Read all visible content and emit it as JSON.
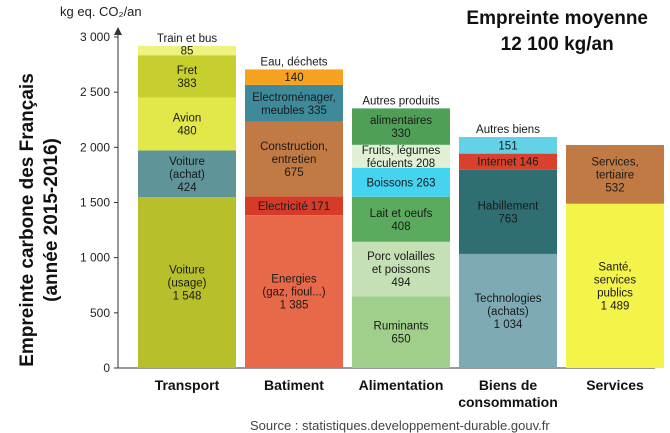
{
  "chart_data": {
    "type": "bar",
    "stacked": true,
    "unit_label": "kg eq. CO₂/an",
    "ylabel_lines": [
      "Empreinte carbone des Français",
      "(année 2015-2016)"
    ],
    "headline_lines": [
      "Empreinte moyenne",
      "12 100 kg/an"
    ],
    "source": "Source : statistiques.developpement-durable.gouv.fr",
    "ylim": [
      0,
      3000
    ],
    "yticks": [
      0,
      500,
      1000,
      1500,
      2000,
      2500,
      3000
    ],
    "ytick_labels": [
      "0",
      "500",
      "1 000",
      "1 500",
      "2 000",
      "2 500",
      "3 000"
    ],
    "grid": false,
    "categories": [
      {
        "name_lines": [
          "Transport"
        ],
        "segments": [
          {
            "label_lines": [
              "Voiture",
              "(usage)",
              "1 548"
            ],
            "value": 1548,
            "color": "#b7c02a"
          },
          {
            "label_lines": [
              "Voiture",
              "(achat)",
              "424"
            ],
            "value": 424,
            "color": "#5f9598"
          },
          {
            "label_lines": [
              "Avion",
              "480"
            ],
            "value": 480,
            "color": "#e3e84a"
          },
          {
            "label_lines": [
              "Fret",
              "383"
            ],
            "value": 383,
            "color": "#c7cf2e"
          },
          {
            "label_lines": [
              "85"
            ],
            "value": 85,
            "color": "#eef27f"
          }
        ],
        "top_label": "Train et bus"
      },
      {
        "name_lines": [
          "Batiment"
        ],
        "segments": [
          {
            "label_lines": [
              "Energies",
              "(gaz, fioul...)",
              "1 385"
            ],
            "value": 1385,
            "color": "#e8694a"
          },
          {
            "label_lines": [
              "Electricité 171"
            ],
            "value": 171,
            "color": "#d63b2a"
          },
          {
            "label_lines": [
              "Construction,",
              "entretien",
              "675"
            ],
            "value": 675,
            "color": "#c27a44"
          },
          {
            "label_lines": [
              "Electroménager,",
              "meubles 335"
            ],
            "value": 335,
            "color": "#3e8a9b"
          },
          {
            "label_lines": [
              "140"
            ],
            "value": 140,
            "color": "#f6a21e"
          }
        ],
        "top_label": "Eau, déchets"
      },
      {
        "name_lines": [
          "Alimentation"
        ],
        "segments": [
          {
            "label_lines": [
              "Ruminants",
              "650"
            ],
            "value": 650,
            "color": "#9fcf8a"
          },
          {
            "label_lines": [
              "Porc volailles",
              "et poissons",
              "494"
            ],
            "value": 494,
            "color": "#c4e0b4"
          },
          {
            "label_lines": [
              "Lait et oeufs",
              "408"
            ],
            "value": 408,
            "color": "#5aab5e"
          },
          {
            "label_lines": [
              "Boissons 263"
            ],
            "value": 263,
            "color": "#44d4f0"
          },
          {
            "label_lines": [
              "Fruits, légumes",
              "féculents 208"
            ],
            "value": 208,
            "color": "#dff0d4"
          },
          {
            "label_lines": [
              "alimentaires",
              "330"
            ],
            "value": 330,
            "color": "#4f9f56"
          }
        ],
        "top_label": "Autres produits"
      },
      {
        "name_lines": [
          "Biens de",
          "consommation"
        ],
        "segments": [
          {
            "label_lines": [
              "Technologies",
              "(achats)",
              "1 034"
            ],
            "value": 1034,
            "color": "#7daab4"
          },
          {
            "label_lines": [
              "Habillement",
              "763"
            ],
            "value": 763,
            "color": "#2f6e72"
          },
          {
            "label_lines": [
              "Internet 146"
            ],
            "value": 146,
            "color": "#d9412c"
          },
          {
            "label_lines": [
              "151"
            ],
            "value": 151,
            "color": "#63d2e6"
          }
        ],
        "top_label": "Autres biens"
      },
      {
        "name_lines": [
          "Services"
        ],
        "segments": [
          {
            "label_lines": [
              "Santé,",
              "services",
              "publics",
              "1 489"
            ],
            "value": 1489,
            "color": "#f3f34a"
          },
          {
            "label_lines": [
              "Services,",
              "tertiaire",
              "532"
            ],
            "value": 532,
            "color": "#c27a44"
          }
        ]
      }
    ]
  }
}
